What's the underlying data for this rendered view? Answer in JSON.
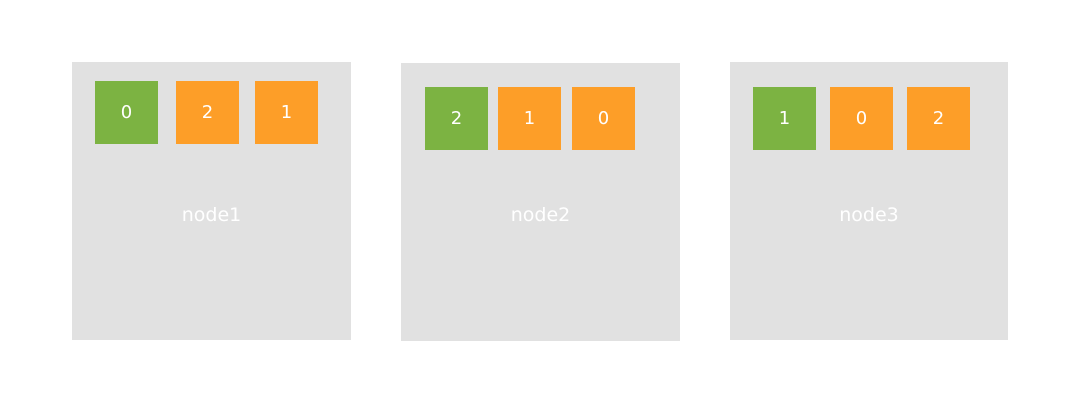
{
  "colors": {
    "node_background": "#e1e1e1",
    "primary_shard": "#7cb342",
    "replica_shard": "#fd9e28",
    "text": "#ffffff"
  },
  "nodes": [
    {
      "label": "node1",
      "shards": [
        {
          "value": "0",
          "kind": "primary"
        },
        {
          "value": "2",
          "kind": "replica"
        },
        {
          "value": "1",
          "kind": "replica"
        }
      ]
    },
    {
      "label": "node2",
      "shards": [
        {
          "value": "2",
          "kind": "primary"
        },
        {
          "value": "1",
          "kind": "replica"
        },
        {
          "value": "0",
          "kind": "replica"
        }
      ]
    },
    {
      "label": "node3",
      "shards": [
        {
          "value": "1",
          "kind": "primary"
        },
        {
          "value": "0",
          "kind": "replica"
        },
        {
          "value": "2",
          "kind": "replica"
        }
      ]
    }
  ]
}
